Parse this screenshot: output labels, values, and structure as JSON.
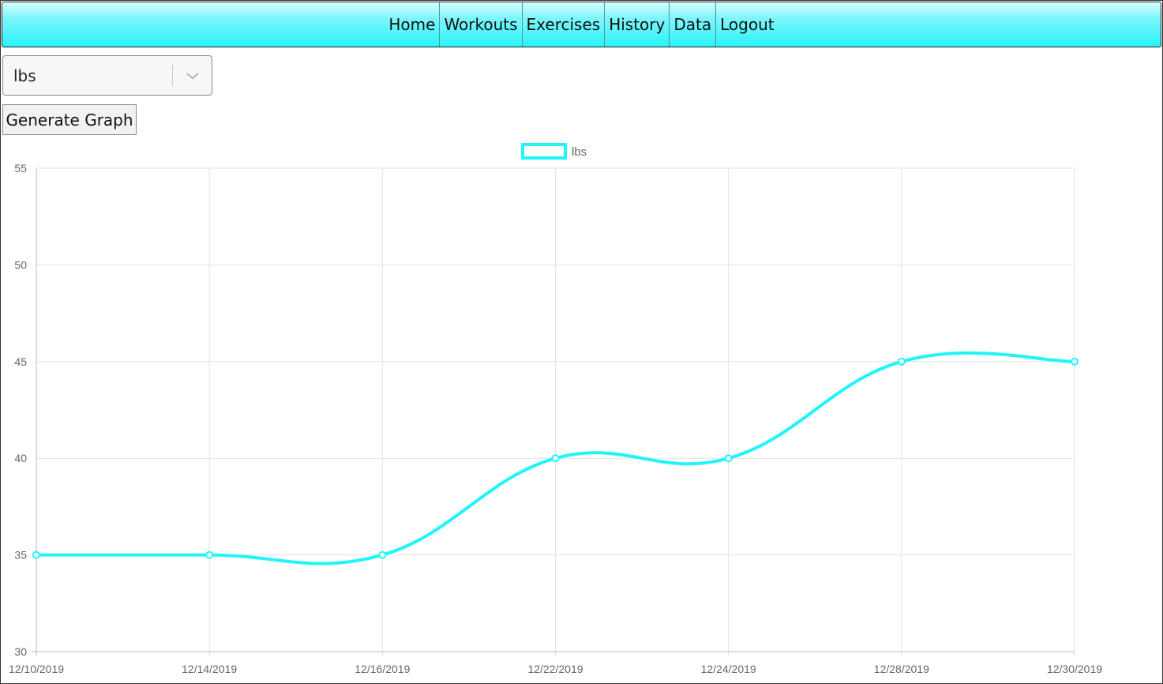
{
  "nav": {
    "items": [
      "Home",
      "Workouts",
      "Exercises",
      "History",
      "Data",
      "Logout"
    ]
  },
  "unit_select": {
    "value": "lbs"
  },
  "generate_button": {
    "label": "Generate Graph"
  },
  "colors": {
    "accent": "#1ff5fb",
    "navbar_top": "#d9ffff",
    "navbar_bottom": "#27f4fb",
    "grid": "#e2e2e2"
  },
  "chart_data": {
    "type": "line",
    "categories": [
      "12/10/2019",
      "12/14/2019",
      "12/16/2019",
      "12/22/2019",
      "12/24/2019",
      "12/28/2019",
      "12/30/2019"
    ],
    "series": [
      {
        "name": "lbs",
        "values": [
          35,
          35,
          35,
          40,
          40,
          45,
          45
        ]
      }
    ],
    "y_ticks": [
      "55",
      "50",
      "45",
      "40",
      "35",
      "30"
    ],
    "ylim": [
      30,
      55
    ],
    "y_step": 5,
    "grid": true,
    "legend_position": "top-center",
    "line_color": "#1ff5fb"
  }
}
